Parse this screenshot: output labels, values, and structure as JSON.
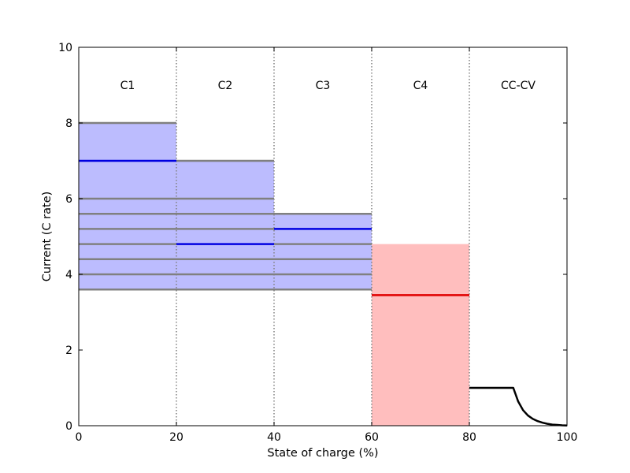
{
  "chart_data": {
    "type": "line",
    "xlabel": "State of charge (%)",
    "ylabel": "Current (C rate)",
    "xlim": [
      0,
      100
    ],
    "ylim": [
      0,
      10
    ],
    "x_ticks": [
      0,
      20,
      40,
      60,
      80,
      100
    ],
    "y_ticks": [
      0,
      2,
      4,
      6,
      8,
      10
    ],
    "grid": false,
    "stage_boundaries": [
      20,
      40,
      60,
      80
    ],
    "stage_label_y": 9,
    "stages": [
      {
        "label": "C1",
        "x_range": [
          0,
          20
        ],
        "band": [
          3.6,
          8.0
        ],
        "band_color": "#bcbcfe",
        "gray_levels": [
          3.6,
          4.0,
          4.4,
          4.8,
          5.2,
          5.6,
          6.0,
          8.0
        ],
        "selected": 7.0,
        "selected_color": "#0000e0"
      },
      {
        "label": "C2",
        "x_range": [
          20,
          40
        ],
        "band": [
          3.6,
          7.0
        ],
        "band_color": "#bcbcfe",
        "gray_levels": [
          3.6,
          4.0,
          4.4,
          5.2,
          5.6,
          6.0,
          7.0
        ],
        "selected": 4.8,
        "selected_color": "#0000e0"
      },
      {
        "label": "C3",
        "x_range": [
          40,
          60
        ],
        "band": [
          3.6,
          5.6
        ],
        "band_color": "#bcbcfe",
        "gray_levels": [
          3.6,
          4.0,
          4.4,
          4.8,
          5.6
        ],
        "selected": 5.2,
        "selected_color": "#0000e0"
      },
      {
        "label": "C4",
        "x_range": [
          60,
          80
        ],
        "band": [
          0,
          4.8
        ],
        "band_color": "#ffbebe",
        "gray_levels": [],
        "selected": 3.45,
        "selected_color": "#e00000"
      },
      {
        "label": "CC-CV",
        "x_range": [
          80,
          100
        ],
        "band": null,
        "band_color": null,
        "gray_levels": [],
        "selected": null,
        "selected_color": null
      }
    ],
    "gray_line_color": "#808080",
    "ccv_curve": {
      "color": "#000000",
      "points": [
        [
          80,
          1.0
        ],
        [
          89,
          1.0
        ],
        [
          90,
          0.64
        ],
        [
          91,
          0.41
        ],
        [
          92,
          0.27
        ],
        [
          93,
          0.18
        ],
        [
          94,
          0.12
        ],
        [
          95,
          0.08
        ],
        [
          96,
          0.05
        ],
        [
          97,
          0.03
        ],
        [
          98,
          0.02
        ],
        [
          99,
          0.01
        ],
        [
          100,
          0.005
        ]
      ]
    }
  }
}
